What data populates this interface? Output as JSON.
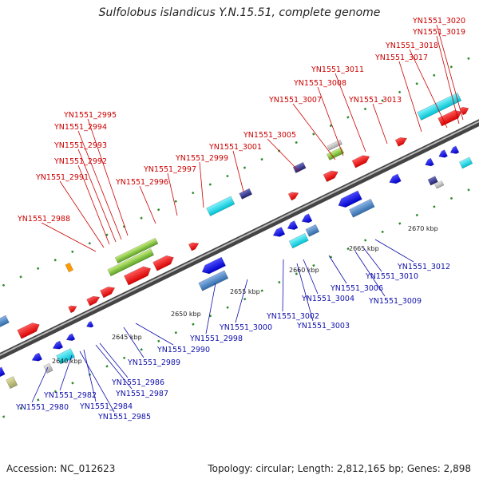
{
  "title": "Sulfolobus islandicus Y.N.15.51, complete genome",
  "footer": {
    "accession": "Accession: NC_012623",
    "summary": "Topology: circular; Length: 2,812,165 bp; Genes: 2,898"
  },
  "colors": {
    "forward_label": "#cc0000",
    "reverse_label": "#1010aa",
    "forward_gene": "#ff0000",
    "reverse_gene": "#0000ff",
    "highlight_cyan": "#00d8e8",
    "highlight_green": "#88d040",
    "steelblue": "#4a7fbf",
    "backbone": "#777777"
  },
  "scale_labels": [
    "2640 kbp",
    "2645 kbp",
    "2650 kbp",
    "2655 kbp",
    "2660 kbp",
    "2665 kbp",
    "2670 kbp"
  ],
  "top_labels": [
    "YN1551_3020",
    "YN1551_3019",
    "YN1551_3018",
    "YN1551_3017",
    "YN1551_3011",
    "YN1551_3008",
    "YN1551_3007",
    "YN1551_3013",
    "YN1551_3005",
    "YN1551_3001",
    "YN1551_2999",
    "YN1551_2997",
    "YN1551_2996",
    "YN1551_2995",
    "YN1551_2994",
    "YN1551_2993",
    "YN1551_2992",
    "YN1551_2991",
    "YN1551_2988"
  ],
  "bottom_labels": [
    "YN1551_3012",
    "YN1551_3010",
    "YN1551_3009",
    "YN1551_3006",
    "YN1551_3004",
    "YN1551_3003",
    "YN1551_3002",
    "YN1551_3000",
    "YN1551_2998",
    "YN1551_2990",
    "YN1551_2989",
    "YN1551_2986",
    "YN1551_2987",
    "YN1551_2984",
    "YN1551_2985",
    "YN1551_2982",
    "YN1551_2980"
  ]
}
